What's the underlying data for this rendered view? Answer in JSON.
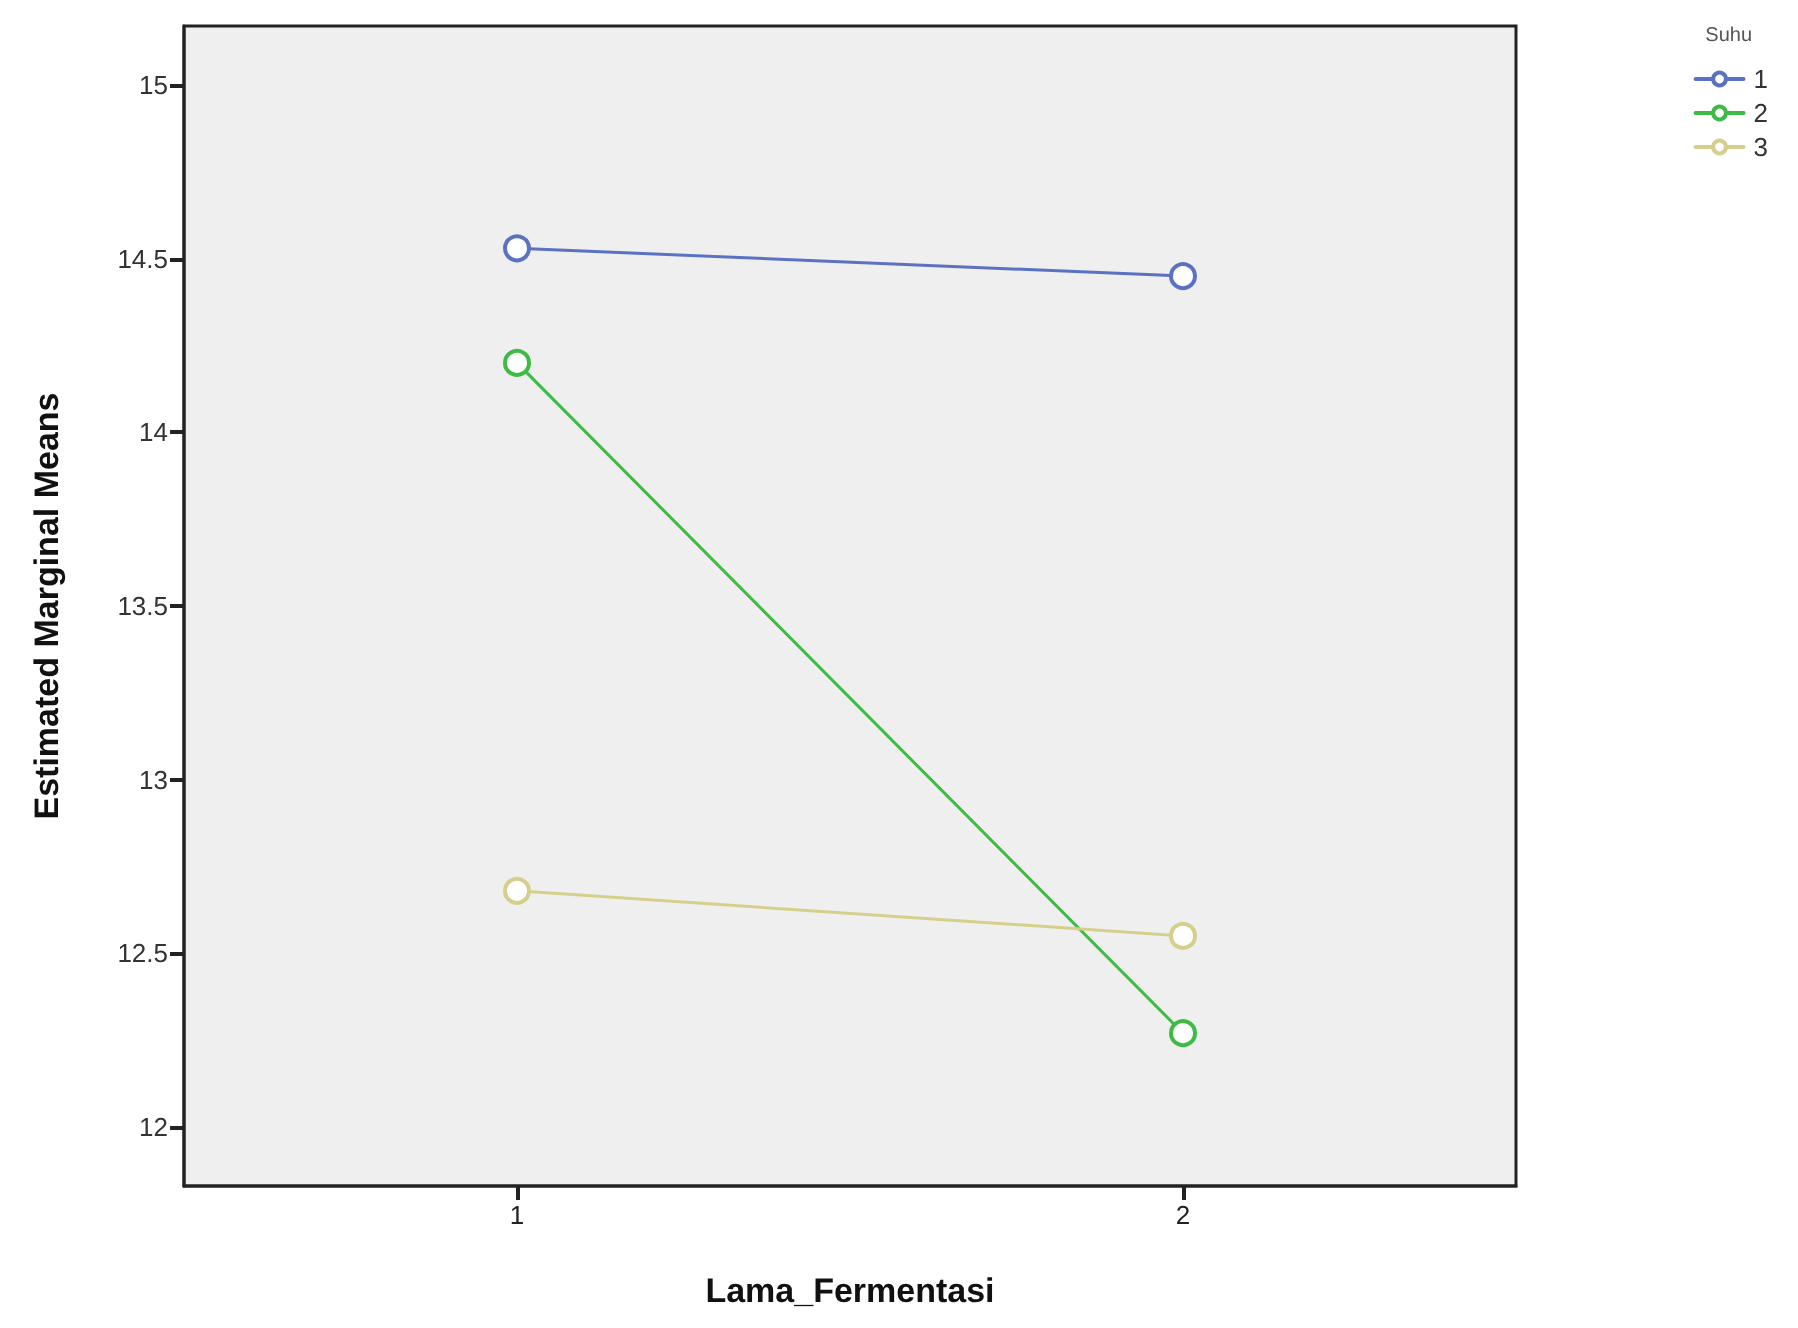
{
  "chart_data": {
    "type": "line",
    "xlabel": "Lama_Fermentasi",
    "ylabel": "Estimated Marginal Means",
    "legend_title": "Suhu",
    "categories": [
      "1",
      "2"
    ],
    "series": [
      {
        "name": "1",
        "color": "#5b72c2",
        "values": [
          14.53,
          14.45
        ]
      },
      {
        "name": "2",
        "color": "#3dbb45",
        "values": [
          14.2,
          12.27
        ]
      },
      {
        "name": "3",
        "color": "#d6cf8c",
        "values": [
          12.68,
          12.55
        ]
      }
    ],
    "ylim": [
      11.83,
      15.17
    ],
    "yticks": [
      12,
      12.5,
      13,
      13.5,
      14,
      14.5,
      15
    ],
    "grid": false,
    "legend": "top right",
    "marker": "circle",
    "line_style": "solid"
  }
}
